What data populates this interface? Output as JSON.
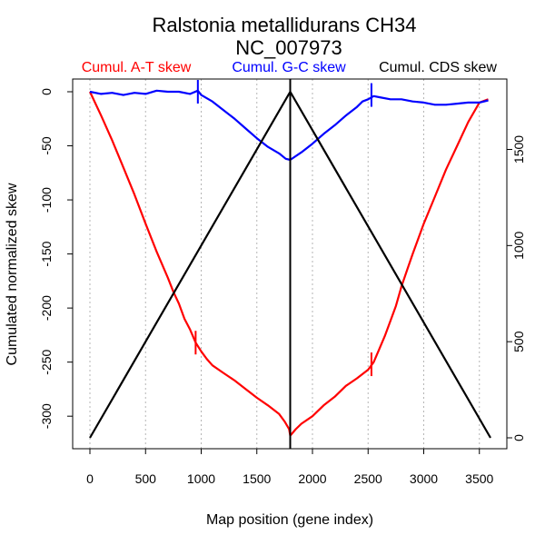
{
  "chart_data": {
    "type": "line",
    "title": "Ralstonia metallidurans CH34",
    "subtitle": "NC_007973",
    "xlabel": "Map position (gene index)",
    "ylabel": "Cumulated normalized skew",
    "xlim": [
      0,
      3600
    ],
    "ylim_left": [
      -320,
      0
    ],
    "ylim_right": [
      0,
      1800
    ],
    "x_ticks": [
      0,
      500,
      1000,
      1500,
      2000,
      2500,
      3000,
      3500
    ],
    "y_left_ticks": [
      0,
      -50,
      -100,
      -150,
      -200,
      -250,
      -300
    ],
    "y_right_ticks": [
      0,
      500,
      1000,
      1500
    ],
    "grid": "vertical dotted",
    "legend_position": "top",
    "legend": [
      {
        "label": "Cumul. A-T skew",
        "color": "#ff0000"
      },
      {
        "label": "Cumul. G-C skew",
        "color": "#0000ff"
      },
      {
        "label": "Cumul. CDS skew",
        "color": "#000000"
      }
    ],
    "series": [
      {
        "name": "Cumul. A-T skew",
        "color": "#ff0000",
        "axis": "left",
        "x": [
          0,
          100,
          200,
          300,
          400,
          500,
          600,
          700,
          750,
          800,
          850,
          900,
          950,
          1000,
          1050,
          1100,
          1200,
          1300,
          1400,
          1500,
          1600,
          1700,
          1750,
          1790,
          1800,
          1850,
          1900,
          2000,
          2100,
          2200,
          2300,
          2400,
          2500,
          2550,
          2600,
          2650,
          2700,
          2750,
          2800,
          2850,
          2900,
          3000,
          3100,
          3200,
          3300,
          3400,
          3500,
          3580
        ],
        "y": [
          0,
          -22,
          -45,
          -70,
          -95,
          -122,
          -148,
          -172,
          -185,
          -196,
          -210,
          -220,
          -232,
          -240,
          -247,
          -253,
          -260,
          -267,
          -275,
          -283,
          -290,
          -298,
          -305,
          -312,
          -318,
          -312,
          -307,
          -300,
          -290,
          -282,
          -272,
          -265,
          -257,
          -250,
          -238,
          -226,
          -212,
          -198,
          -180,
          -165,
          -150,
          -122,
          -97,
          -72,
          -50,
          -28,
          -10,
          -7
        ]
      },
      {
        "name": "Cumul. G-C skew",
        "color": "#0000ff",
        "axis": "left",
        "x": [
          0,
          100,
          200,
          300,
          400,
          500,
          600,
          700,
          800,
          900,
          970,
          1000,
          1100,
          1200,
          1300,
          1400,
          1500,
          1600,
          1700,
          1760,
          1800,
          1900,
          2000,
          2100,
          2200,
          2300,
          2400,
          2450,
          2500,
          2550,
          2600,
          2700,
          2800,
          2900,
          3000,
          3100,
          3200,
          3300,
          3400,
          3500,
          3580
        ],
        "y": [
          0,
          -2,
          -1,
          -3,
          -1,
          -2,
          1,
          0,
          0,
          -2,
          1,
          -3,
          -9,
          -17,
          -25,
          -34,
          -43,
          -51,
          -57,
          -62,
          -63,
          -56,
          -48,
          -39,
          -31,
          -22,
          -14,
          -9,
          -7,
          -4,
          -5,
          -7,
          -7,
          -9,
          -10,
          -12,
          -12,
          -11,
          -10,
          -10,
          -8
        ]
      },
      {
        "name": "Cumul. CDS skew",
        "color": "#000000",
        "axis": "right",
        "x": [
          0,
          1800,
          3600
        ],
        "y": [
          0,
          1800,
          0
        ]
      }
    ],
    "markers": [
      {
        "series": "Cumul. A-T skew",
        "x": 950,
        "y": -232
      },
      {
        "series": "Cumul. A-T skew",
        "x": 2530,
        "y": -252
      },
      {
        "series": "Cumul. G-C skew",
        "x": 970,
        "y": 0
      },
      {
        "series": "Cumul. G-C skew",
        "x": 2530,
        "y": -3
      }
    ],
    "vertical_line_x": 1800
  }
}
